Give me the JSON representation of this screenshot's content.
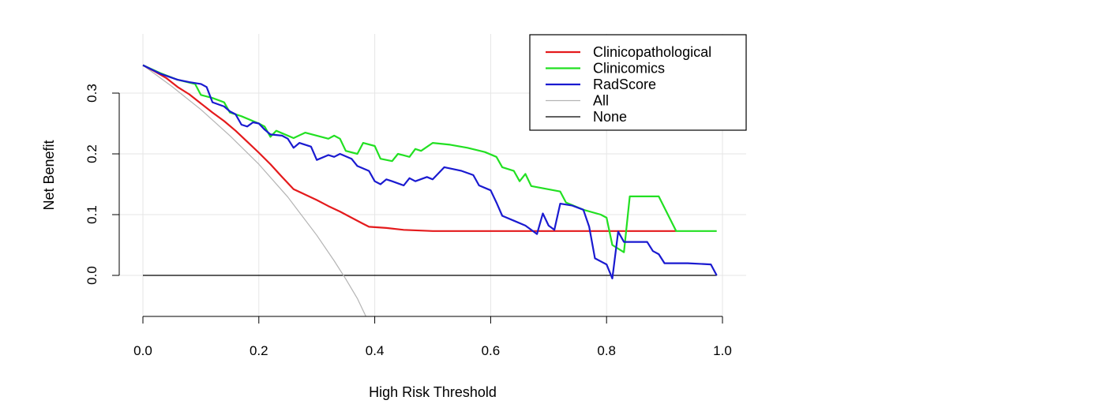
{
  "chart_data": {
    "type": "line",
    "title": "",
    "xlabel": "High Risk Threshold",
    "ylabel": "Net Benefit",
    "xlim": [
      0.0,
      1.0
    ],
    "ylim": [
      -0.07,
      0.39
    ],
    "xticks": [
      "0.0",
      "0.2",
      "0.4",
      "0.6",
      "0.8",
      "1.0"
    ],
    "yticks": [
      "0.0",
      "0.1",
      "0.2",
      "0.3"
    ],
    "grid": true,
    "legend_position": "top-right",
    "series": [
      {
        "name": "Clinicopathological",
        "color": "#e41a1c",
        "points": [
          [
            0.0,
            0.346
          ],
          [
            0.02,
            0.336
          ],
          [
            0.04,
            0.325
          ],
          [
            0.06,
            0.31
          ],
          [
            0.08,
            0.298
          ],
          [
            0.1,
            0.283
          ],
          [
            0.12,
            0.268
          ],
          [
            0.14,
            0.254
          ],
          [
            0.16,
            0.238
          ],
          [
            0.18,
            0.22
          ],
          [
            0.2,
            0.202
          ],
          [
            0.22,
            0.183
          ],
          [
            0.24,
            0.162
          ],
          [
            0.26,
            0.142
          ],
          [
            0.28,
            0.133
          ],
          [
            0.3,
            0.124
          ],
          [
            0.32,
            0.114
          ],
          [
            0.34,
            0.105
          ],
          [
            0.36,
            0.095
          ],
          [
            0.38,
            0.085
          ],
          [
            0.39,
            0.08
          ],
          [
            0.42,
            0.078
          ],
          [
            0.45,
            0.075
          ],
          [
            0.5,
            0.073
          ],
          [
            0.6,
            0.073
          ],
          [
            0.7,
            0.073
          ],
          [
            0.8,
            0.073
          ],
          [
            0.92,
            0.073
          ]
        ]
      },
      {
        "name": "Clinicomics",
        "color": "#22e022",
        "points": [
          [
            0.0,
            0.346
          ],
          [
            0.03,
            0.333
          ],
          [
            0.06,
            0.322
          ],
          [
            0.09,
            0.315
          ],
          [
            0.1,
            0.297
          ],
          [
            0.12,
            0.292
          ],
          [
            0.14,
            0.285
          ],
          [
            0.15,
            0.268
          ],
          [
            0.17,
            0.262
          ],
          [
            0.2,
            0.25
          ],
          [
            0.21,
            0.245
          ],
          [
            0.22,
            0.228
          ],
          [
            0.23,
            0.238
          ],
          [
            0.26,
            0.226
          ],
          [
            0.28,
            0.235
          ],
          [
            0.3,
            0.23
          ],
          [
            0.32,
            0.225
          ],
          [
            0.33,
            0.23
          ],
          [
            0.34,
            0.225
          ],
          [
            0.35,
            0.205
          ],
          [
            0.37,
            0.2
          ],
          [
            0.38,
            0.218
          ],
          [
            0.4,
            0.213
          ],
          [
            0.41,
            0.192
          ],
          [
            0.43,
            0.188
          ],
          [
            0.44,
            0.2
          ],
          [
            0.46,
            0.195
          ],
          [
            0.47,
            0.208
          ],
          [
            0.48,
            0.205
          ],
          [
            0.5,
            0.218
          ],
          [
            0.53,
            0.215
          ],
          [
            0.56,
            0.21
          ],
          [
            0.59,
            0.203
          ],
          [
            0.61,
            0.195
          ],
          [
            0.62,
            0.178
          ],
          [
            0.64,
            0.172
          ],
          [
            0.65,
            0.155
          ],
          [
            0.66,
            0.167
          ],
          [
            0.67,
            0.147
          ],
          [
            0.72,
            0.138
          ],
          [
            0.73,
            0.12
          ],
          [
            0.76,
            0.108
          ],
          [
            0.79,
            0.1
          ],
          [
            0.8,
            0.095
          ],
          [
            0.81,
            0.05
          ],
          [
            0.83,
            0.038
          ],
          [
            0.84,
            0.13
          ],
          [
            0.89,
            0.13
          ],
          [
            0.92,
            0.073
          ],
          [
            0.99,
            0.073
          ]
        ]
      },
      {
        "name": "RadScore",
        "color": "#1a1ad0",
        "points": [
          [
            0.0,
            0.346
          ],
          [
            0.03,
            0.332
          ],
          [
            0.06,
            0.322
          ],
          [
            0.08,
            0.318
          ],
          [
            0.1,
            0.315
          ],
          [
            0.11,
            0.31
          ],
          [
            0.12,
            0.285
          ],
          [
            0.14,
            0.278
          ],
          [
            0.15,
            0.27
          ],
          [
            0.16,
            0.265
          ],
          [
            0.17,
            0.248
          ],
          [
            0.18,
            0.245
          ],
          [
            0.19,
            0.252
          ],
          [
            0.2,
            0.25
          ],
          [
            0.21,
            0.24
          ],
          [
            0.22,
            0.232
          ],
          [
            0.24,
            0.23
          ],
          [
            0.25,
            0.225
          ],
          [
            0.26,
            0.21
          ],
          [
            0.27,
            0.218
          ],
          [
            0.29,
            0.212
          ],
          [
            0.3,
            0.19
          ],
          [
            0.32,
            0.198
          ],
          [
            0.33,
            0.195
          ],
          [
            0.34,
            0.2
          ],
          [
            0.36,
            0.192
          ],
          [
            0.37,
            0.18
          ],
          [
            0.39,
            0.172
          ],
          [
            0.4,
            0.155
          ],
          [
            0.41,
            0.15
          ],
          [
            0.42,
            0.158
          ],
          [
            0.43,
            0.155
          ],
          [
            0.45,
            0.148
          ],
          [
            0.46,
            0.16
          ],
          [
            0.47,
            0.155
          ],
          [
            0.49,
            0.162
          ],
          [
            0.5,
            0.158
          ],
          [
            0.51,
            0.168
          ],
          [
            0.52,
            0.178
          ],
          [
            0.55,
            0.172
          ],
          [
            0.57,
            0.165
          ],
          [
            0.58,
            0.148
          ],
          [
            0.6,
            0.14
          ],
          [
            0.61,
            0.12
          ],
          [
            0.62,
            0.098
          ],
          [
            0.64,
            0.09
          ],
          [
            0.66,
            0.082
          ],
          [
            0.68,
            0.068
          ],
          [
            0.69,
            0.102
          ],
          [
            0.7,
            0.082
          ],
          [
            0.71,
            0.075
          ],
          [
            0.72,
            0.118
          ],
          [
            0.74,
            0.115
          ],
          [
            0.76,
            0.108
          ],
          [
            0.77,
            0.08
          ],
          [
            0.78,
            0.028
          ],
          [
            0.8,
            0.018
          ],
          [
            0.81,
            -0.005
          ],
          [
            0.82,
            0.072
          ],
          [
            0.83,
            0.055
          ],
          [
            0.87,
            0.055
          ],
          [
            0.88,
            0.04
          ],
          [
            0.89,
            0.035
          ],
          [
            0.9,
            0.02
          ],
          [
            0.94,
            0.02
          ],
          [
            0.98,
            0.018
          ],
          [
            0.99,
            0.0
          ]
        ]
      },
      {
        "name": "All",
        "color": "#b4b4b4",
        "points": [
          [
            0.0,
            0.346
          ],
          [
            0.05,
            0.311
          ],
          [
            0.1,
            0.273
          ],
          [
            0.15,
            0.23
          ],
          [
            0.2,
            0.183
          ],
          [
            0.25,
            0.129
          ],
          [
            0.3,
            0.066
          ],
          [
            0.33,
            0.024
          ],
          [
            0.35,
            -0.006
          ],
          [
            0.37,
            -0.038
          ],
          [
            0.385,
            -0.068
          ]
        ]
      },
      {
        "name": "None",
        "color": "#000000",
        "points": [
          [
            0.0,
            0.0
          ],
          [
            0.99,
            0.0
          ]
        ]
      }
    ]
  }
}
